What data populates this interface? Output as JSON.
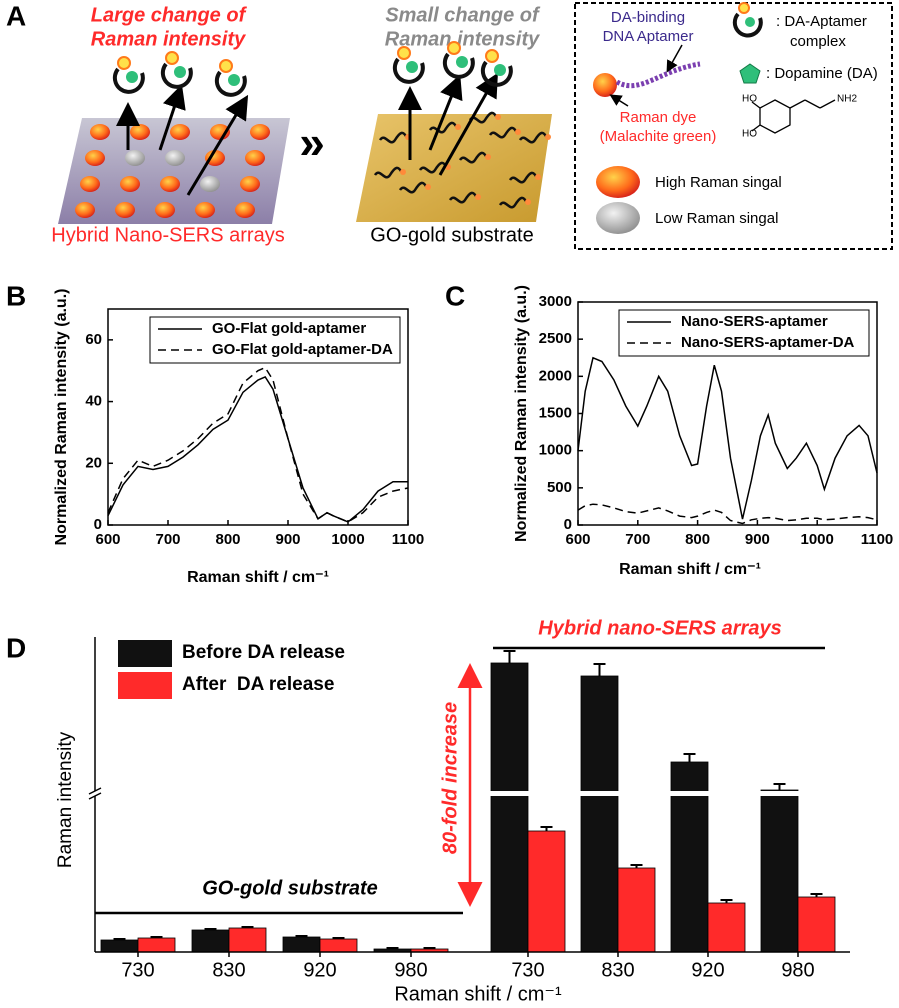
{
  "schematic": {
    "panel_label": "A",
    "left_caption": [
      "Large change of",
      "Raman intensity"
    ],
    "left_substrate": "Hybrid Nano-SERS arrays",
    "comparison": "»",
    "right_caption": [
      "Small change of",
      "Raman intensity"
    ],
    "right_substrate": "GO-gold substrate",
    "legend": {
      "aptamer": [
        "DA-binding",
        "DNA Aptamer"
      ],
      "complex": [
        ": DA-Aptamer",
        "complex"
      ],
      "dopamine": ": Dopamine (DA)",
      "dye": [
        "Raman dye",
        "(Malachite green)"
      ],
      "hydroxyl": [
        "HO",
        "HO"
      ],
      "amine": "NH2",
      "high": "High Raman singal",
      "low": "Low Raman singal"
    }
  },
  "chart_data": [
    {
      "type": "line",
      "panel_label": "B",
      "xlabel": "Raman shift / cm⁻¹",
      "ylabel": "Normalized Raman intensity (a.u.)",
      "x": [
        600,
        625,
        650,
        675,
        700,
        725,
        750,
        775,
        800,
        825,
        850,
        862,
        875,
        900,
        925,
        950,
        965,
        975,
        1000,
        1025,
        1050,
        1075,
        1100
      ],
      "series": [
        {
          "name": "GO-Flat gold-aptamer",
          "color": "#000000",
          "linestyle": "solid",
          "values": [
            3,
            13,
            19,
            18,
            19,
            22,
            26,
            31,
            34,
            43,
            47,
            48,
            44,
            28,
            12,
            2,
            4,
            3,
            1,
            5,
            11,
            14,
            14
          ]
        },
        {
          "name": "GO-Flat gold-aptamer-DA",
          "color": "#000000",
          "linestyle": "dashed",
          "values": [
            4,
            15,
            21,
            19,
            21,
            24,
            28,
            33,
            36,
            46,
            50,
            51,
            47,
            28,
            10,
            2,
            4,
            3,
            1,
            4,
            9,
            11,
            12
          ]
        }
      ],
      "xlim": [
        600,
        1100
      ],
      "ylim": [
        0,
        70
      ],
      "xticks": [
        600,
        700,
        800,
        900,
        1000,
        1100
      ],
      "yticks": [
        0,
        20,
        40,
        60
      ],
      "legend": "upper right"
    },
    {
      "type": "line",
      "panel_label": "C",
      "xlabel": "Raman shift / cm⁻¹",
      "ylabel": "Normalized Raman intensity (a.u.)",
      "x": [
        600,
        612,
        625,
        640,
        660,
        680,
        700,
        715,
        735,
        750,
        770,
        790,
        800,
        815,
        828,
        840,
        855,
        875,
        890,
        905,
        918,
        930,
        950,
        965,
        982,
        1000,
        1012,
        1030,
        1050,
        1070,
        1085,
        1100
      ],
      "series": [
        {
          "name": "Nano-SERS-aptamer",
          "color": "#000000",
          "linestyle": "solid",
          "values": [
            1000,
            1800,
            2250,
            2200,
            1950,
            1600,
            1330,
            1600,
            2000,
            1800,
            1200,
            800,
            820,
            1600,
            2150,
            1800,
            900,
            80,
            600,
            1200,
            1480,
            1100,
            760,
            900,
            1100,
            800,
            480,
            900,
            1200,
            1340,
            1200,
            700
          ]
        },
        {
          "name": "Nano-SERS-aptamer-DA",
          "color": "#000000",
          "linestyle": "dashed",
          "values": [
            200,
            260,
            280,
            270,
            230,
            180,
            160,
            190,
            230,
            190,
            120,
            100,
            120,
            170,
            200,
            170,
            60,
            20,
            70,
            90,
            100,
            90,
            60,
            70,
            90,
            90,
            70,
            80,
            100,
            110,
            100,
            70
          ]
        }
      ],
      "xlim": [
        600,
        1100
      ],
      "ylim": [
        0,
        3000
      ],
      "xticks": [
        600,
        700,
        800,
        900,
        1000,
        1100
      ],
      "yticks": [
        0,
        500,
        1000,
        1500,
        2000,
        2500,
        3000
      ],
      "legend": "upper right"
    },
    {
      "type": "bar",
      "panel_label": "D",
      "xlabel": "Raman shift / cm⁻¹",
      "ylabel": "Raman intensity",
      "categories": [
        "730",
        "830",
        "920",
        "980",
        "730",
        "830",
        "920",
        "980"
      ],
      "series": [
        {
          "name": "Before DA release",
          "color": "#111111",
          "values": [
            1.2,
            2.2,
            1.5,
            0.3,
            28.9,
            27.6,
            19.0,
            16.2
          ],
          "errors": [
            0.1,
            0.1,
            0.1,
            0.1,
            1.2,
            1.2,
            0.8,
            0.6
          ]
        },
        {
          "name": "After  DA release",
          "color": "#ff2a2a",
          "values": [
            1.4,
            2.4,
            1.3,
            0.3,
            12.1,
            8.4,
            4.9,
            5.5
          ],
          "errors": [
            0.1,
            0.1,
            0.1,
            0.1,
            0.4,
            0.3,
            0.3,
            0.3
          ]
        }
      ],
      "ylim": [
        0,
        31.5
      ],
      "axis_break": [
        15.6,
        16.1
      ],
      "legend": "upper left",
      "annotations": {
        "go_group": "GO-gold substrate",
        "nano_group": "Hybrid nano-SERS arrays",
        "fold_change": "80-fold increase"
      }
    }
  ]
}
